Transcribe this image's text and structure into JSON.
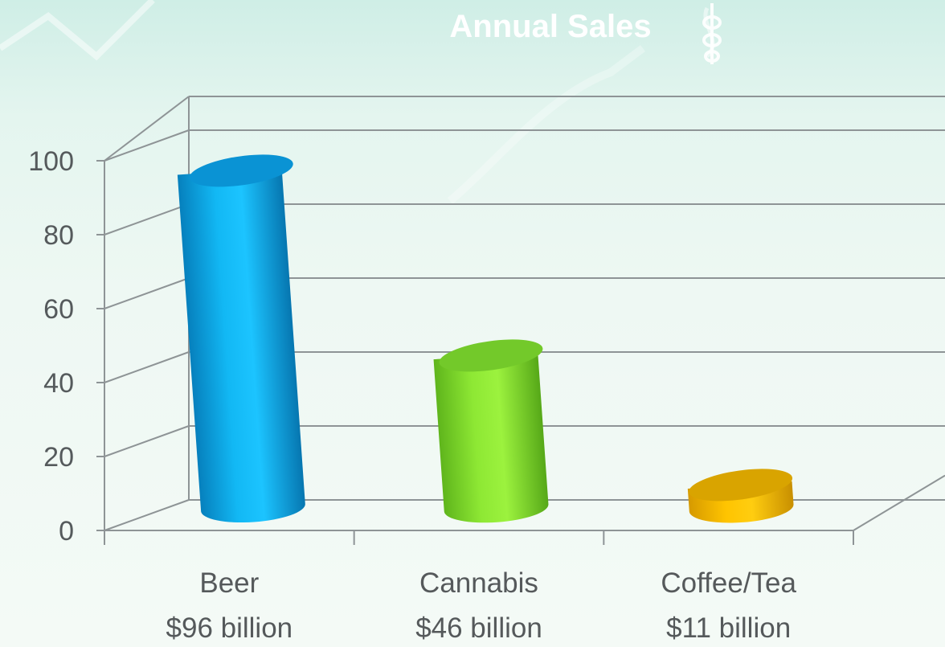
{
  "chart_data": {
    "type": "bar",
    "style": "3d-cylinder",
    "title": "Annual Sales",
    "categories": [
      "Beer",
      "Cannabis",
      "Coffee/Tea"
    ],
    "category_sublabels": [
      "$96 billion",
      "$46 billion",
      "$11 billion"
    ],
    "values": [
      96,
      46,
      11
    ],
    "ylim": [
      0,
      100
    ],
    "yticks": [
      0,
      20,
      40,
      60,
      80,
      100
    ],
    "grid": true,
    "legend": "none",
    "colors": [
      "#0ab0ee",
      "#88e02a",
      "#f2b800"
    ]
  }
}
